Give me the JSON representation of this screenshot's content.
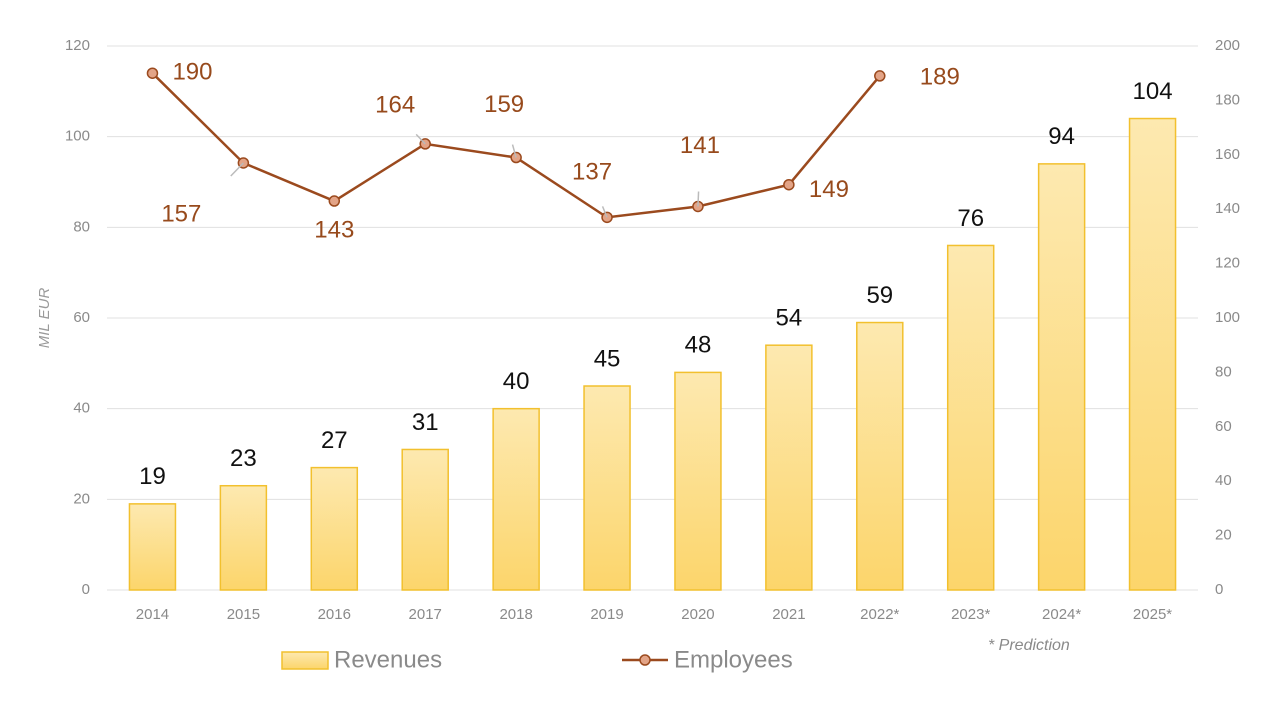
{
  "chart_data": {
    "type": "bar",
    "ylabel": "MIL EUR",
    "categories": [
      "2014",
      "2015",
      "2016",
      "2017",
      "2018",
      "2019",
      "2020",
      "2021",
      "2022*",
      "2023*",
      "2024*",
      "2025*"
    ],
    "series": [
      {
        "name": "Revenues",
        "type": "bar",
        "color": "#fcd56b",
        "values": [
          19,
          23,
          27,
          31,
          40,
          45,
          48,
          54,
          59,
          76,
          94,
          104
        ]
      },
      {
        "name": "Employees",
        "type": "line",
        "axis": "y2",
        "color": "#9b4a1e",
        "values": [
          190,
          157,
          143,
          164,
          159,
          137,
          141,
          149,
          189,
          null,
          null,
          null
        ]
      }
    ],
    "ylim": [
      0,
      120
    ],
    "yticks": [
      0,
      20,
      40,
      60,
      80,
      100,
      120
    ],
    "y2lim": [
      0,
      200
    ],
    "y2ticks": [
      0,
      20,
      40,
      60,
      80,
      100,
      120,
      140,
      160,
      180,
      200
    ],
    "grid": true,
    "legend": "bottom",
    "note": "* Prediction"
  }
}
